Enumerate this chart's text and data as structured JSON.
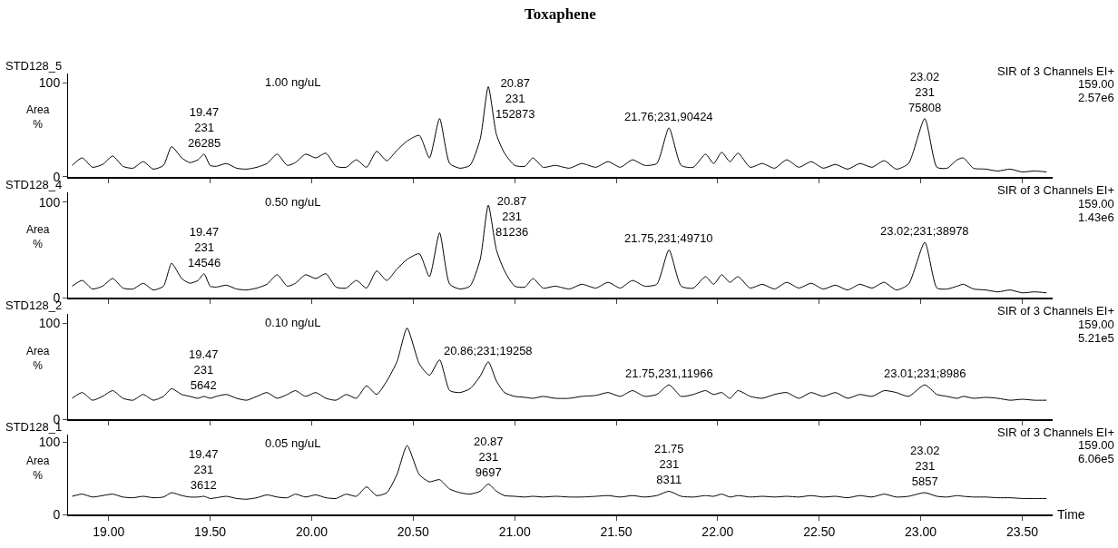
{
  "chart_data": [
    {
      "type": "line",
      "title": "Toxaphene",
      "ylabel": "Area\n%",
      "tick_labels": "y",
      "xlim": [
        18.8,
        23.65
      ],
      "ylim": [
        0,
        110
      ],
      "yticks": [
        0,
        100
      ],
      "xticks": [
        {
          "value": 19,
          "label": null
        },
        {
          "value": 19.5,
          "label": null
        },
        {
          "value": 20,
          "label": null
        },
        {
          "value": 20.5,
          "label": null
        },
        {
          "value": 21,
          "label": null
        },
        {
          "value": 21.5,
          "label": null
        },
        {
          "value": 22,
          "label": null
        },
        {
          "value": 22.5,
          "label": null
        },
        {
          "value": 23,
          "label": null
        },
        {
          "value": 23.5,
          "label": null
        }
      ],
      "x": [
        18.82,
        18.87,
        18.92,
        18.97,
        19.02,
        19.07,
        19.12,
        19.17,
        19.22,
        19.27,
        19.31,
        19.36,
        19.4,
        19.44,
        19.47,
        19.5,
        19.53,
        19.58,
        19.63,
        19.68,
        19.73,
        19.78,
        19.83,
        19.88,
        19.92,
        19.97,
        20.02,
        20.07,
        20.12,
        20.17,
        20.22,
        20.27,
        20.32,
        20.37,
        20.42,
        20.47,
        20.53,
        20.58,
        20.63,
        20.68,
        20.73,
        20.78,
        20.83,
        20.87,
        20.91,
        20.95,
        21.0,
        21.05,
        21.09,
        21.14,
        21.2,
        21.27,
        21.33,
        21.4,
        21.46,
        21.52,
        21.58,
        21.64,
        21.7,
        21.76,
        21.82,
        21.88,
        21.94,
        21.98,
        22.02,
        22.06,
        22.1,
        22.16,
        22.22,
        22.28,
        22.34,
        22.4,
        22.46,
        22.52,
        22.58,
        22.64,
        22.7,
        22.76,
        22.82,
        22.88,
        22.94,
        23.02,
        23.08,
        23.13,
        23.18,
        23.21,
        23.26,
        23.32,
        23.38,
        23.44,
        23.5,
        23.56,
        23.62
      ],
      "series": [
        {
          "color": "#000000",
          "values": [
            12,
            20,
            10,
            13,
            22,
            11,
            9,
            16,
            8,
            12,
            32,
            20,
            15,
            18,
            24,
            12,
            11,
            14,
            9,
            8,
            10,
            14,
            24,
            12,
            15,
            24,
            20,
            25,
            11,
            10,
            18,
            10,
            27,
            17,
            28,
            38,
            44,
            20,
            62,
            14,
            9,
            12,
            40,
            96,
            45,
            25,
            12,
            11,
            20,
            10,
            12,
            9,
            14,
            10,
            16,
            10,
            18,
            12,
            14,
            52,
            12,
            10,
            24,
            14,
            26,
            16,
            25,
            10,
            14,
            9,
            18,
            10,
            16,
            9,
            13,
            8,
            14,
            10,
            17,
            8,
            14,
            62,
            10,
            9,
            18,
            20,
            9,
            8,
            6,
            8,
            5,
            6,
            5
          ]
        }
      ],
      "annotations": [
        "STD128_5",
        "SIR of 3 Channels EI+",
        "159.00",
        "2.57e6",
        "1.00 ng/uL",
        {
          "text": "19.47\n231\n26285",
          "x": 19.47,
          "y": 24
        },
        {
          "text": "20.87\n231\n152873",
          "x": 20.87,
          "y": 96
        },
        {
          "text": "21.76;231,90424",
          "x": 21.76,
          "y": 52
        },
        {
          "text": "23.02\n231\n75808",
          "x": 23.02,
          "y": 62
        }
      ]
    },
    {
      "type": "line",
      "ylabel": "Area\n%",
      "tick_labels": "y",
      "xlim": [
        18.8,
        23.65
      ],
      "ylim": [
        0,
        110
      ],
      "yticks": [
        0,
        100
      ],
      "xticks": [
        {
          "value": 19,
          "label": null
        },
        {
          "value": 19.5,
          "label": null
        },
        {
          "value": 20,
          "label": null
        },
        {
          "value": 20.5,
          "label": null
        },
        {
          "value": 21,
          "label": null
        },
        {
          "value": 21.5,
          "label": null
        },
        {
          "value": 22,
          "label": null
        },
        {
          "value": 22.5,
          "label": null
        },
        {
          "value": 23,
          "label": null
        },
        {
          "value": 23.5,
          "label": null
        }
      ],
      "x": [
        18.82,
        18.87,
        18.92,
        18.97,
        19.02,
        19.07,
        19.12,
        19.17,
        19.22,
        19.27,
        19.31,
        19.36,
        19.4,
        19.44,
        19.47,
        19.5,
        19.53,
        19.58,
        19.63,
        19.68,
        19.73,
        19.78,
        19.83,
        19.88,
        19.92,
        19.97,
        20.02,
        20.07,
        20.12,
        20.17,
        20.22,
        20.27,
        20.32,
        20.37,
        20.42,
        20.47,
        20.53,
        20.58,
        20.63,
        20.68,
        20.73,
        20.78,
        20.83,
        20.87,
        20.91,
        20.95,
        21.0,
        21.05,
        21.09,
        21.14,
        21.2,
        21.27,
        21.33,
        21.4,
        21.46,
        21.52,
        21.58,
        21.64,
        21.7,
        21.76,
        21.82,
        21.88,
        21.94,
        21.98,
        22.02,
        22.06,
        22.1,
        22.16,
        22.22,
        22.28,
        22.34,
        22.4,
        22.46,
        22.52,
        22.58,
        22.64,
        22.7,
        22.76,
        22.82,
        22.88,
        22.94,
        23.02,
        23.08,
        23.13,
        23.18,
        23.21,
        23.26,
        23.32,
        23.38,
        23.44,
        23.5,
        23.56,
        23.62
      ],
      "series": [
        {
          "color": "#000000",
          "values": [
            12,
            18,
            9,
            12,
            20,
            10,
            9,
            15,
            8,
            12,
            36,
            20,
            15,
            18,
            25,
            12,
            11,
            13,
            9,
            8,
            10,
            14,
            24,
            12,
            15,
            24,
            20,
            25,
            11,
            10,
            18,
            10,
            28,
            18,
            30,
            40,
            46,
            22,
            68,
            14,
            9,
            12,
            40,
            97,
            50,
            28,
            12,
            11,
            20,
            10,
            12,
            9,
            14,
            10,
            16,
            10,
            18,
            12,
            14,
            50,
            12,
            10,
            22,
            14,
            24,
            16,
            22,
            10,
            14,
            9,
            16,
            10,
            15,
            9,
            13,
            8,
            14,
            10,
            16,
            8,
            14,
            58,
            10,
            9,
            12,
            14,
            9,
            8,
            6,
            8,
            5,
            6,
            5
          ]
        }
      ],
      "annotations": [
        "STD128_4",
        "SIR of 3 Channels EI+",
        "159.00",
        "1.43e6",
        "0.50 ng/uL",
        {
          "text": "19.47\n231\n14546",
          "x": 19.47,
          "y": 25
        },
        {
          "text": "20.87\n231\n81236",
          "x": 20.87,
          "y": 97
        },
        {
          "text": "21.75,231;49710",
          "x": 21.76,
          "y": 50
        },
        {
          "text": "23.02;231;38978",
          "x": 23.02,
          "y": 58
        }
      ]
    },
    {
      "type": "line",
      "ylabel": "Area\n%",
      "tick_labels": "y",
      "xlim": [
        18.8,
        23.65
      ],
      "ylim": [
        0,
        110
      ],
      "yticks": [
        0,
        100
      ],
      "xticks": [
        {
          "value": 19,
          "label": null
        },
        {
          "value": 19.5,
          "label": null
        },
        {
          "value": 20,
          "label": null
        },
        {
          "value": 20.5,
          "label": null
        },
        {
          "value": 21,
          "label": null
        },
        {
          "value": 21.5,
          "label": null
        },
        {
          "value": 22,
          "label": null
        },
        {
          "value": 22.5,
          "label": null
        },
        {
          "value": 23,
          "label": null
        },
        {
          "value": 23.5,
          "label": null
        }
      ],
      "x": [
        18.82,
        18.87,
        18.92,
        18.97,
        19.02,
        19.07,
        19.12,
        19.17,
        19.22,
        19.27,
        19.31,
        19.36,
        19.4,
        19.44,
        19.47,
        19.5,
        19.53,
        19.58,
        19.63,
        19.68,
        19.73,
        19.78,
        19.83,
        19.88,
        19.92,
        19.97,
        20.02,
        20.07,
        20.12,
        20.17,
        20.22,
        20.27,
        20.32,
        20.37,
        20.42,
        20.47,
        20.53,
        20.58,
        20.63,
        20.68,
        20.73,
        20.78,
        20.83,
        20.87,
        20.91,
        20.95,
        21.0,
        21.05,
        21.09,
        21.14,
        21.2,
        21.27,
        21.33,
        21.4,
        21.46,
        21.52,
        21.58,
        21.64,
        21.7,
        21.76,
        21.82,
        21.88,
        21.94,
        21.98,
        22.02,
        22.06,
        22.1,
        22.16,
        22.22,
        22.28,
        22.34,
        22.4,
        22.46,
        22.52,
        22.58,
        22.64,
        22.7,
        22.76,
        22.82,
        22.88,
        22.94,
        23.02,
        23.08,
        23.13,
        23.18,
        23.21,
        23.26,
        23.32,
        23.38,
        23.44,
        23.5,
        23.56,
        23.62
      ],
      "series": [
        {
          "color": "#000000",
          "values": [
            22,
            28,
            20,
            24,
            30,
            22,
            20,
            26,
            20,
            24,
            32,
            26,
            24,
            22,
            24,
            22,
            24,
            26,
            22,
            20,
            24,
            28,
            22,
            26,
            30,
            24,
            28,
            22,
            20,
            26,
            22,
            35,
            26,
            40,
            60,
            95,
            58,
            46,
            62,
            30,
            28,
            32,
            45,
            60,
            40,
            28,
            24,
            23,
            22,
            24,
            22,
            22,
            24,
            25,
            28,
            24,
            30,
            24,
            26,
            36,
            24,
            26,
            30,
            26,
            28,
            22,
            30,
            24,
            22,
            26,
            28,
            22,
            28,
            24,
            28,
            22,
            26,
            24,
            30,
            28,
            24,
            36,
            26,
            24,
            22,
            24,
            22,
            23,
            22,
            20,
            21,
            20,
            20
          ]
        }
      ],
      "annotations": [
        "STD128_2",
        "SIR of 3 Channels EI+",
        "159.00",
        "5.21e5",
        "0.10 ng/uL",
        {
          "text": "19.47\n231\n5642",
          "x": 19.47,
          "y": 24
        },
        {
          "text": "20.86;231;19258",
          "x": 20.87,
          "y": 60
        },
        {
          "text": "21.75,231,11966",
          "x": 21.76,
          "y": 36
        },
        {
          "text": "23.01;231;8986",
          "x": 23.02,
          "y": 36
        }
      ]
    },
    {
      "type": "line",
      "ylabel": "Area\n%",
      "xlabel": "Time",
      "xlim": [
        18.8,
        23.65
      ],
      "ylim": [
        0,
        110
      ],
      "yticks": [
        0,
        100
      ],
      "xticks": [
        {
          "value": 19,
          "label": "19.00"
        },
        {
          "value": 19.5,
          "label": "19.50"
        },
        {
          "value": 20,
          "label": "20.00"
        },
        {
          "value": 20.5,
          "label": "20.50"
        },
        {
          "value": 21,
          "label": "21.00"
        },
        {
          "value": 21.5,
          "label": "21.50"
        },
        {
          "value": 22,
          "label": "22.00"
        },
        {
          "value": 22.5,
          "label": "22.50"
        },
        {
          "value": 23,
          "label": "23.00"
        },
        {
          "value": 23.5,
          "label": "23.50"
        }
      ],
      "x": [
        18.82,
        18.87,
        18.92,
        18.97,
        19.02,
        19.07,
        19.12,
        19.17,
        19.22,
        19.27,
        19.31,
        19.36,
        19.4,
        19.44,
        19.47,
        19.5,
        19.53,
        19.58,
        19.63,
        19.68,
        19.73,
        19.78,
        19.83,
        19.88,
        19.92,
        19.97,
        20.02,
        20.07,
        20.12,
        20.17,
        20.22,
        20.27,
        20.32,
        20.37,
        20.42,
        20.47,
        20.53,
        20.58,
        20.63,
        20.68,
        20.73,
        20.78,
        20.83,
        20.87,
        20.91,
        20.95,
        21.0,
        21.05,
        21.09,
        21.14,
        21.2,
        21.27,
        21.33,
        21.4,
        21.46,
        21.52,
        21.58,
        21.64,
        21.7,
        21.76,
        21.82,
        21.88,
        21.94,
        21.98,
        22.02,
        22.06,
        22.1,
        22.16,
        22.22,
        22.28,
        22.34,
        22.4,
        22.46,
        22.52,
        22.58,
        22.64,
        22.7,
        22.76,
        22.82,
        22.88,
        22.94,
        23.02,
        23.08,
        23.13,
        23.18,
        23.21,
        23.26,
        23.32,
        23.38,
        23.44,
        23.5,
        23.56,
        23.62
      ],
      "series": [
        {
          "color": "#000000",
          "values": [
            25,
            28,
            24,
            26,
            28,
            24,
            23,
            25,
            23,
            24,
            30,
            26,
            24,
            24,
            25,
            22,
            23,
            25,
            22,
            21,
            23,
            27,
            24,
            23,
            28,
            24,
            27,
            23,
            22,
            28,
            25,
            38,
            26,
            30,
            55,
            95,
            55,
            45,
            48,
            35,
            30,
            28,
            32,
            42,
            32,
            26,
            25,
            24,
            25,
            24,
            25,
            24,
            24,
            25,
            26,
            24,
            26,
            24,
            26,
            32,
            25,
            24,
            26,
            25,
            28,
            24,
            26,
            24,
            25,
            24,
            25,
            24,
            26,
            24,
            25,
            23,
            26,
            24,
            28,
            24,
            25,
            30,
            25,
            24,
            26,
            25,
            24,
            24,
            23,
            23,
            22,
            22,
            22
          ]
        }
      ],
      "annotations": [
        "STD128_1",
        "SIR of 3 Channels EI+",
        "159.00",
        "6.06e5",
        "0.05 ng/uL",
        {
          "text": "19.47\n231\n3612",
          "x": 19.47,
          "y": 25
        },
        {
          "text": "20.87\n231\n9697",
          "x": 20.87,
          "y": 42
        },
        {
          "text": "21.75\n231\n8311",
          "x": 21.76,
          "y": 32
        },
        {
          "text": "23.02\n231\n5857",
          "x": 23.02,
          "y": 30
        }
      ]
    }
  ]
}
